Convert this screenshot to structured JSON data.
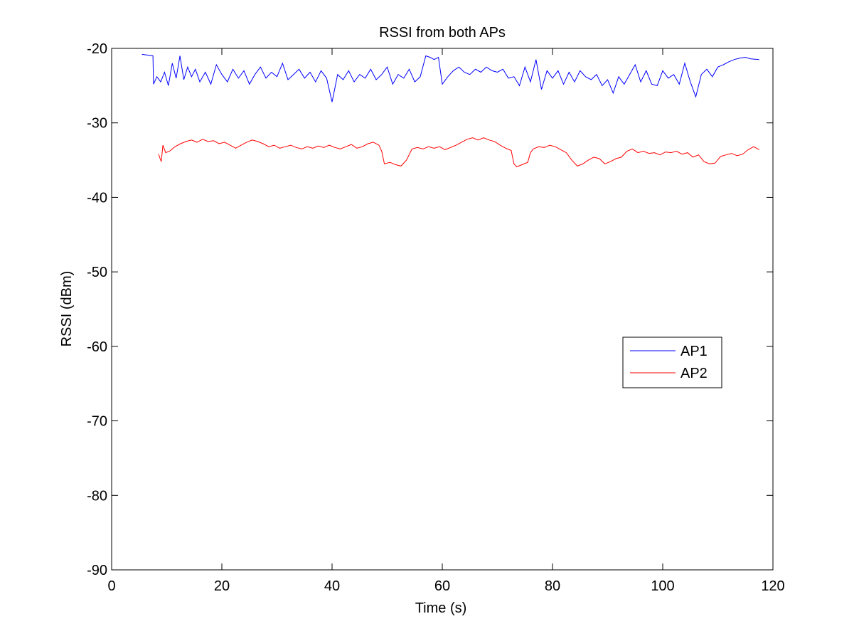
{
  "chart_data": {
    "type": "line",
    "title": "RSSI from both APs",
    "xlabel": "Time (s)",
    "ylabel": "RSSI (dBm)",
    "xlim": [
      0,
      120
    ],
    "ylim": [
      -90,
      -20
    ],
    "xticks": [
      0,
      20,
      40,
      60,
      80,
      100,
      120
    ],
    "yticks": [
      -90,
      -80,
      -70,
      -60,
      -50,
      -40,
      -30,
      -20
    ],
    "xtick_labels": [
      "0",
      "20",
      "40",
      "60",
      "80",
      "100",
      "120"
    ],
    "ytick_labels": [
      "-90",
      "-80",
      "-70",
      "-60",
      "-50",
      "-40",
      "-30",
      "-20"
    ],
    "grid": false,
    "legend_position": "right",
    "series": [
      {
        "name": "AP1",
        "color": "#0000ff",
        "x": [
          5.5,
          7.5,
          7.6,
          8.2,
          8.9,
          9.6,
          10.3,
          11.0,
          11.7,
          12.4,
          13.1,
          13.8,
          14.5,
          15.2,
          16.0,
          17.0,
          18.0,
          19.0,
          20.0,
          21.0,
          22.0,
          23.0,
          24.0,
          25.0,
          26.0,
          27.0,
          28.0,
          29.0,
          30.0,
          31.0,
          32.0,
          33.0,
          34.0,
          35.0,
          36.0,
          37.0,
          38.0,
          39.0,
          40.0,
          41.0,
          42.0,
          43.0,
          44.0,
          45.0,
          46.0,
          47.0,
          48.0,
          49.0,
          50.0,
          51.0,
          52.0,
          53.0,
          54.0,
          55.0,
          56.0,
          57.0,
          57.8,
          58.5,
          59.3,
          60.0,
          61.0,
          62.0,
          63.0,
          64.0,
          65.0,
          66.0,
          67.0,
          68.0,
          69.0,
          70.0,
          71.0,
          72.0,
          73.0,
          74.0,
          75.0,
          76.0,
          77.0,
          78.0,
          79.0,
          80.0,
          81.0,
          82.0,
          83.0,
          84.0,
          85.0,
          86.0,
          87.0,
          88.0,
          89.0,
          90.0,
          91.0,
          92.0,
          93.0,
          94.0,
          95.0,
          96.0,
          97.0,
          98.0,
          99.0,
          100.0,
          101.0,
          102.0,
          103.0,
          104.0,
          105.0,
          106.0,
          107.0,
          108.0,
          109.0,
          110.0,
          111.0,
          112.0,
          113.0,
          114.0,
          115.0,
          116.0,
          117.5
        ],
        "values": [
          -20.8,
          -21.0,
          -24.8,
          -23.8,
          -24.5,
          -23.2,
          -25.0,
          -22.0,
          -24.0,
          -21.0,
          -24.2,
          -22.5,
          -23.8,
          -22.8,
          -24.5,
          -23.2,
          -24.8,
          -22.2,
          -23.5,
          -24.5,
          -22.8,
          -24.0,
          -23.0,
          -24.8,
          -23.5,
          -22.5,
          -24.0,
          -23.2,
          -23.8,
          -22.0,
          -24.2,
          -23.5,
          -22.8,
          -24.0,
          -23.2,
          -24.5,
          -23.0,
          -24.0,
          -27.2,
          -23.5,
          -24.2,
          -23.0,
          -24.5,
          -23.5,
          -24.0,
          -22.8,
          -24.2,
          -23.5,
          -22.5,
          -24.8,
          -23.5,
          -24.0,
          -22.8,
          -24.5,
          -23.8,
          -21.0,
          -21.2,
          -21.5,
          -21.2,
          -24.8,
          -23.8,
          -23.0,
          -22.5,
          -23.2,
          -23.5,
          -22.8,
          -23.2,
          -22.5,
          -23.0,
          -23.2,
          -22.8,
          -24.0,
          -23.8,
          -25.0,
          -22.5,
          -24.5,
          -21.5,
          -25.5,
          -23.0,
          -24.0,
          -23.0,
          -24.8,
          -23.2,
          -24.5,
          -23.0,
          -23.8,
          -24.2,
          -23.5,
          -25.0,
          -24.2,
          -26.0,
          -23.8,
          -24.8,
          -23.5,
          -22.2,
          -24.5,
          -23.0,
          -24.8,
          -25.0,
          -23.0,
          -24.0,
          -23.5,
          -24.8,
          -22.0,
          -24.5,
          -26.5,
          -23.5,
          -22.8,
          -23.8,
          -22.5,
          -22.2,
          -21.8,
          -21.5,
          -21.3,
          -21.2,
          -21.4,
          -21.5
        ]
      },
      {
        "name": "AP2",
        "color": "#ff0000",
        "x": [
          8.5,
          8.8,
          9.0,
          9.3,
          9.8,
          10.5,
          11.5,
          12.5,
          13.5,
          14.5,
          15.5,
          16.5,
          17.5,
          18.5,
          19.5,
          20.5,
          21.5,
          22.5,
          23.5,
          24.5,
          25.5,
          26.5,
          27.5,
          28.5,
          29.5,
          30.5,
          31.5,
          32.5,
          33.5,
          34.5,
          35.5,
          36.5,
          37.5,
          38.5,
          39.5,
          40.5,
          41.5,
          42.5,
          43.5,
          44.5,
          45.5,
          46.5,
          47.5,
          48.5,
          49.0,
          49.5,
          50.5,
          51.5,
          52.5,
          53.5,
          54.5,
          55.5,
          56.5,
          57.5,
          58.5,
          59.5,
          60.5,
          61.5,
          62.5,
          63.5,
          64.5,
          65.5,
          66.5,
          67.5,
          68.5,
          69.5,
          70.5,
          71.5,
          72.5,
          73.0,
          73.5,
          74.5,
          75.5,
          76.0,
          76.5,
          77.5,
          78.5,
          79.5,
          80.5,
          81.5,
          82.5,
          83.5,
          84.5,
          85.5,
          86.5,
          87.5,
          88.5,
          89.5,
          90.5,
          91.5,
          92.5,
          93.5,
          94.5,
          95.5,
          96.5,
          97.5,
          98.5,
          99.5,
          100.5,
          101.5,
          102.5,
          103.5,
          104.5,
          105.5,
          106.5,
          107.5,
          108.5,
          109.5,
          110.5,
          111.5,
          112.5,
          113.5,
          114.5,
          115.5,
          116.5,
          117.5
        ],
        "values": [
          -34.2,
          -34.8,
          -35.2,
          -33.0,
          -34.0,
          -33.8,
          -33.2,
          -32.8,
          -32.5,
          -32.3,
          -32.6,
          -32.2,
          -32.5,
          -32.4,
          -32.8,
          -32.6,
          -33.0,
          -33.4,
          -33.0,
          -32.6,
          -32.3,
          -32.5,
          -32.8,
          -33.2,
          -33.0,
          -33.4,
          -33.2,
          -33.0,
          -33.3,
          -33.5,
          -33.2,
          -33.4,
          -33.1,
          -33.3,
          -33.0,
          -33.3,
          -33.5,
          -33.2,
          -32.9,
          -33.4,
          -33.2,
          -32.8,
          -32.6,
          -33.0,
          -33.8,
          -35.5,
          -35.3,
          -35.6,
          -35.8,
          -35.0,
          -33.5,
          -33.3,
          -33.5,
          -33.2,
          -33.4,
          -33.2,
          -33.6,
          -33.3,
          -33.0,
          -32.6,
          -32.2,
          -32.0,
          -32.3,
          -32.0,
          -32.3,
          -32.5,
          -33.0,
          -33.4,
          -33.7,
          -35.5,
          -35.9,
          -35.6,
          -35.3,
          -34.0,
          -33.5,
          -33.2,
          -33.3,
          -33.0,
          -33.2,
          -33.6,
          -34.0,
          -35.0,
          -35.8,
          -35.5,
          -35.0,
          -34.6,
          -34.8,
          -35.5,
          -35.2,
          -34.8,
          -34.6,
          -33.8,
          -33.5,
          -34.0,
          -33.8,
          -34.1,
          -34.0,
          -34.3,
          -33.9,
          -34.0,
          -33.8,
          -34.2,
          -34.0,
          -34.6,
          -34.3,
          -35.2,
          -35.5,
          -35.4,
          -34.5,
          -34.3,
          -34.1,
          -34.4,
          -34.2,
          -33.6,
          -33.2,
          -33.6
        ]
      }
    ]
  }
}
